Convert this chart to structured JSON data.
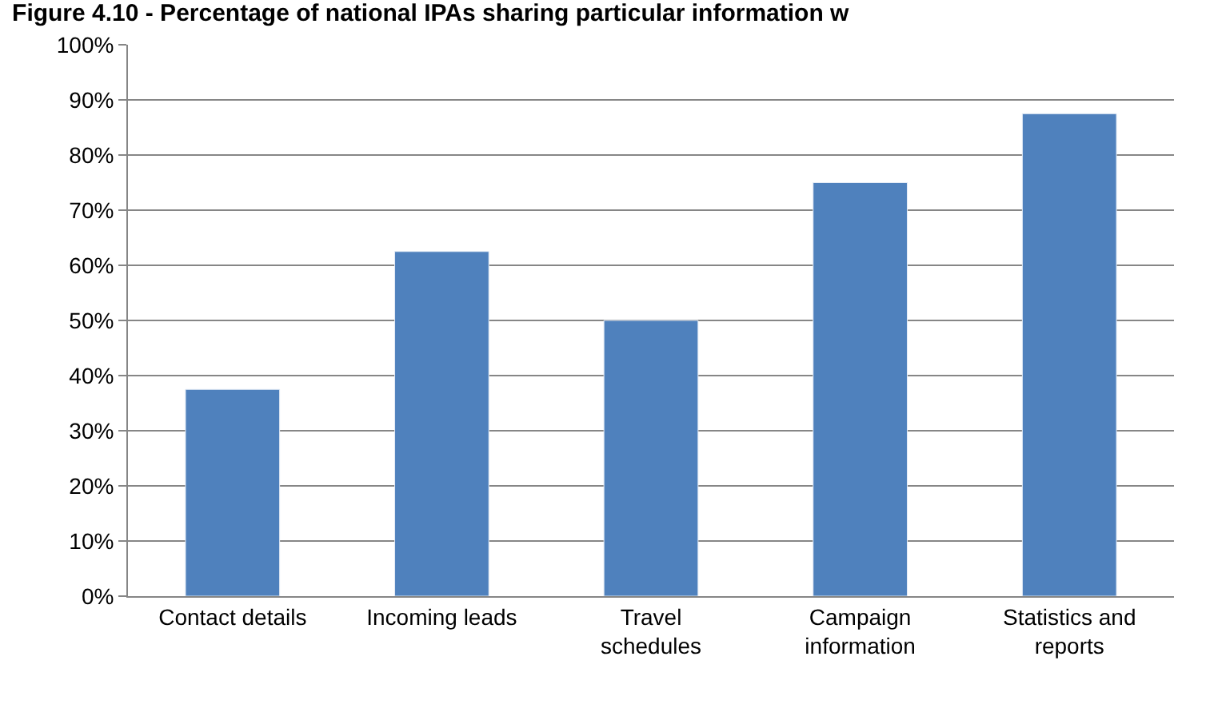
{
  "chart_data": {
    "type": "bar",
    "title": "Figure 4.10 - Percentage of national IPAs sharing particular information w",
    "categories": [
      "Contact details",
      "Incoming leads",
      "Travel schedules",
      "Campaign information",
      "Statistics and reports"
    ],
    "values": [
      37.5,
      62.5,
      50,
      75,
      87.5
    ],
    "color": "#4f81bd",
    "ylim": [
      0,
      100
    ],
    "yticks": [
      {
        "value": 0,
        "label": "0%"
      },
      {
        "value": 10,
        "label": "10%"
      },
      {
        "value": 20,
        "label": "20%"
      },
      {
        "value": 30,
        "label": "30%"
      },
      {
        "value": 40,
        "label": "40%"
      },
      {
        "value": 50,
        "label": "50%"
      },
      {
        "value": 60,
        "label": "60%"
      },
      {
        "value": 70,
        "label": "70%"
      },
      {
        "value": 80,
        "label": "80%"
      },
      {
        "value": 90,
        "label": "90%"
      },
      {
        "value": 100,
        "label": "100%"
      }
    ],
    "grid": "y"
  }
}
